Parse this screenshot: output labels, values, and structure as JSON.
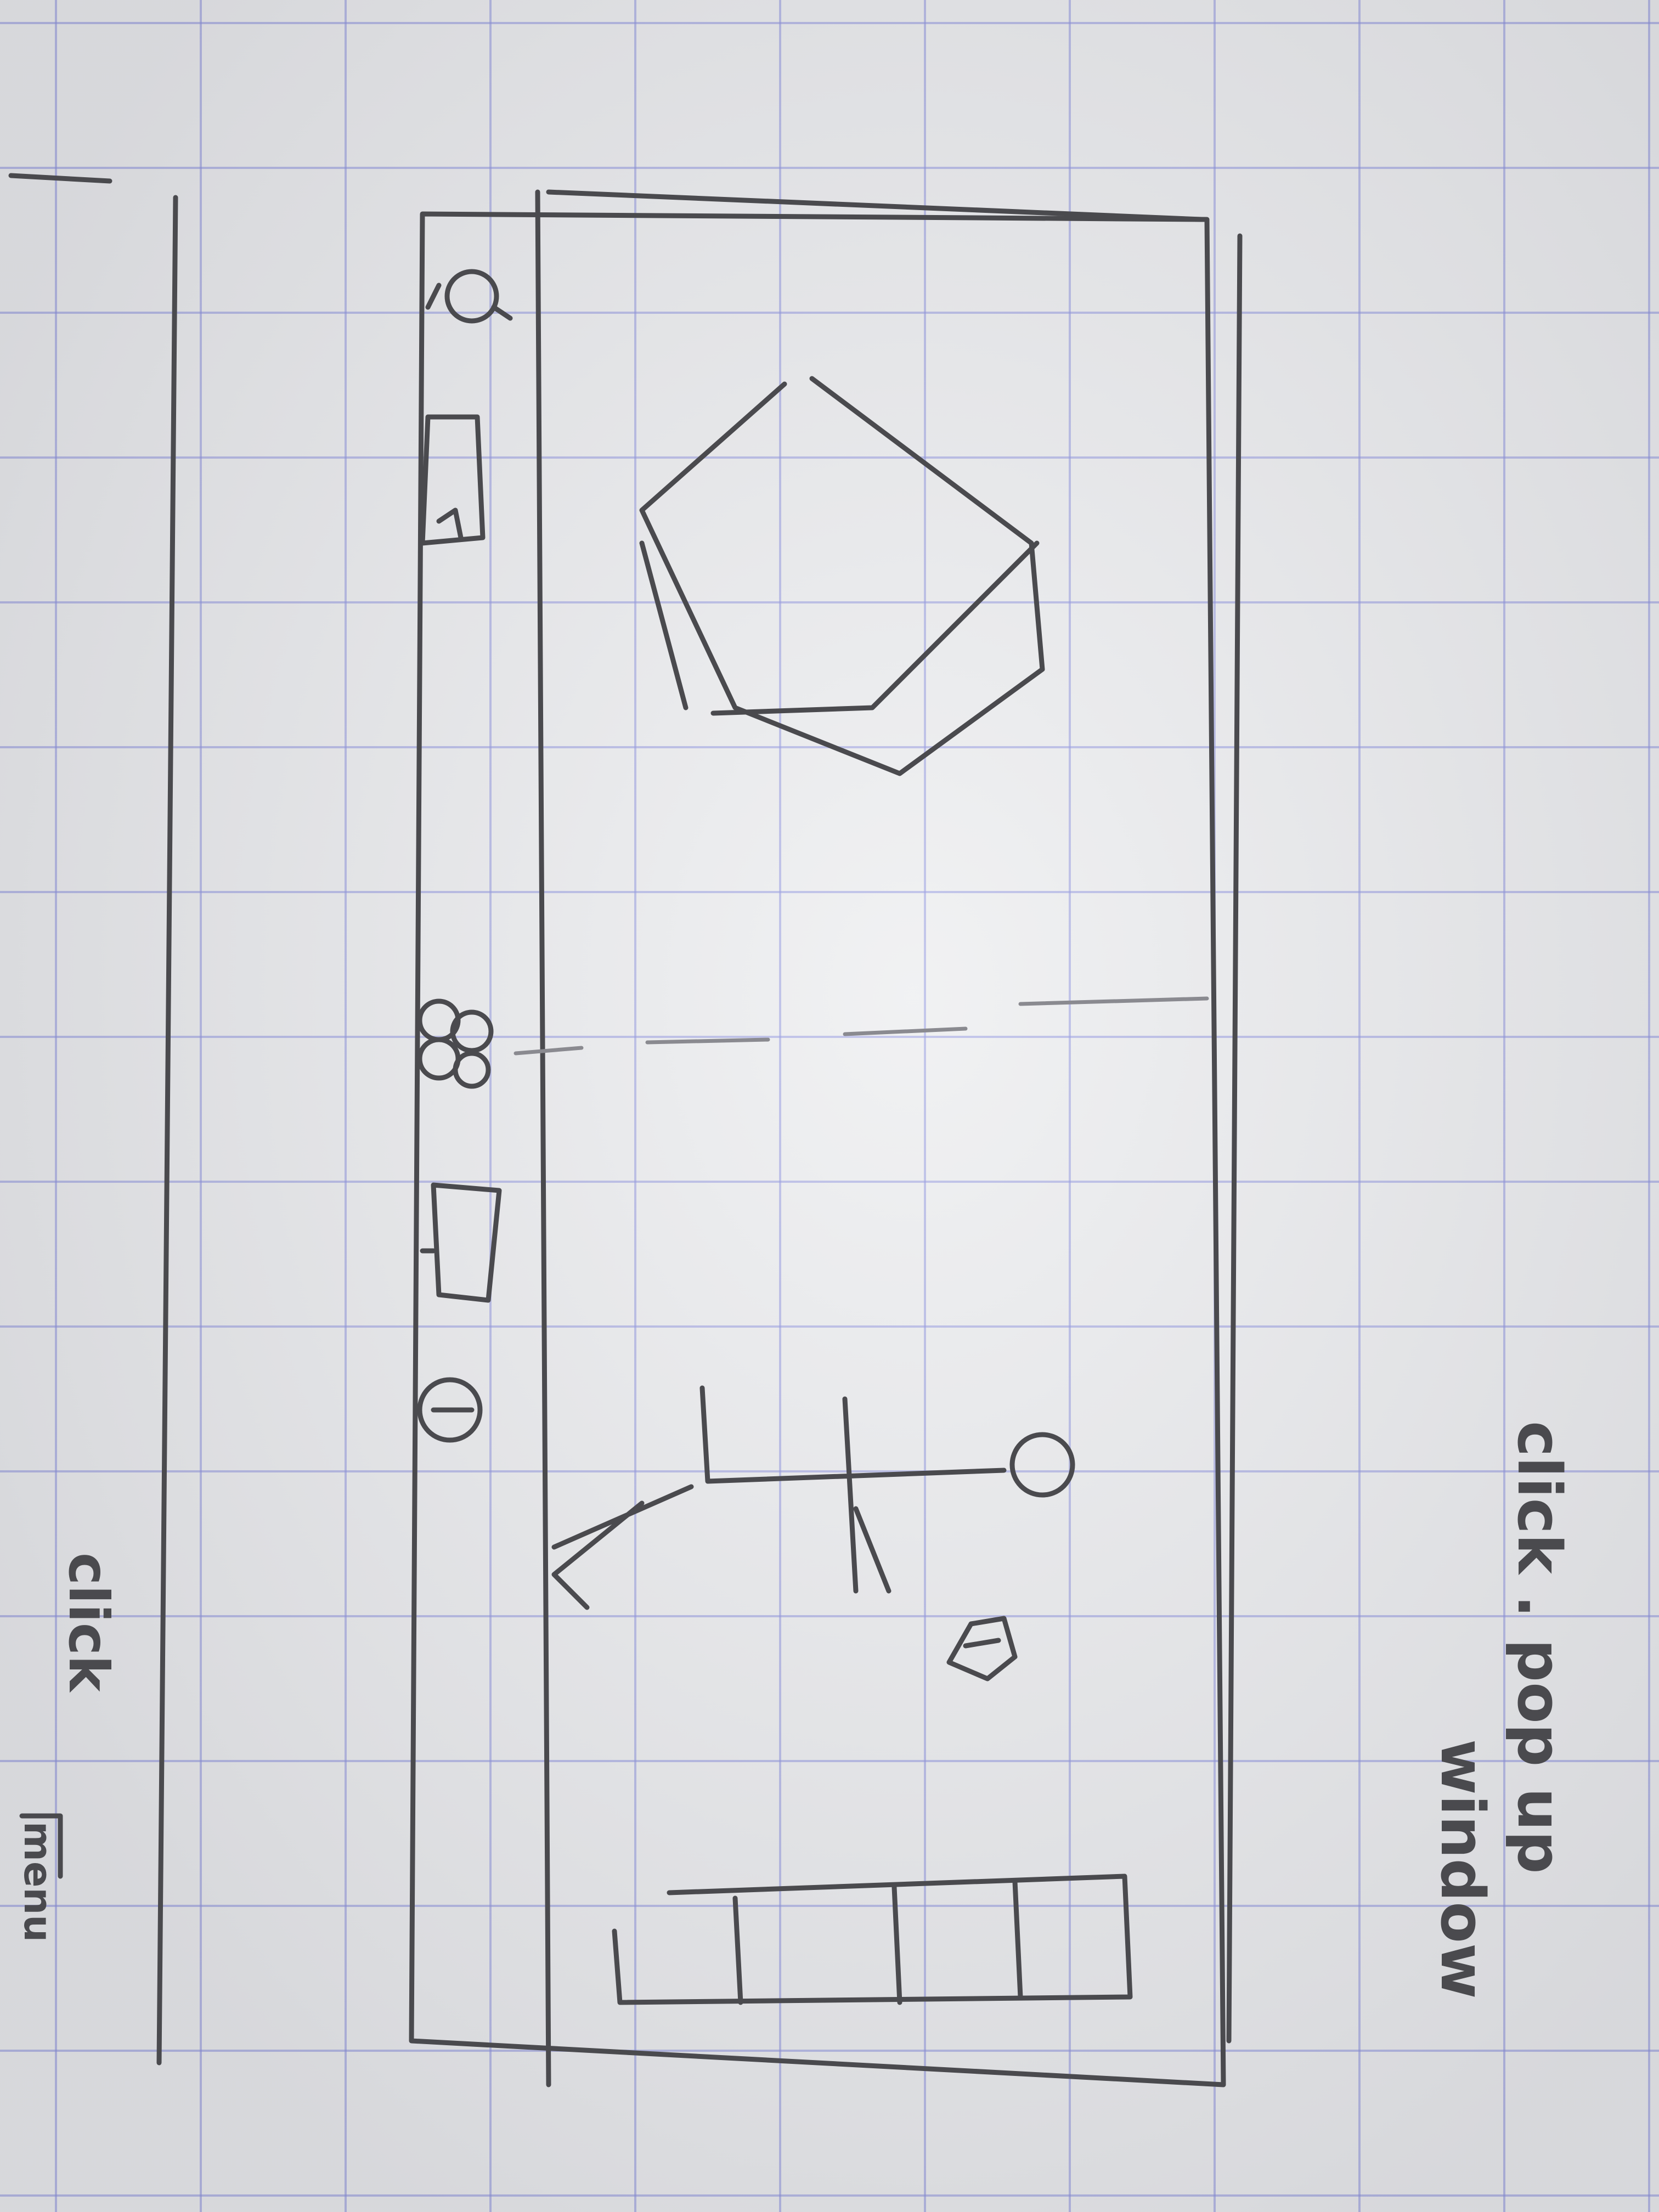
{
  "annotations": {
    "top_note_line1": "click . pop up",
    "top_note_line2": "window",
    "left_note": "click",
    "corner_note": "menu"
  },
  "icons": [
    "person-icon",
    "tshirt-icon",
    "cake-icon",
    "flower-icon",
    "hanger-icon",
    "pot-icon",
    "skirt-icon",
    "cube-icon",
    "stick-figure-icon",
    "small-cube-icon",
    "shelf-icon"
  ]
}
